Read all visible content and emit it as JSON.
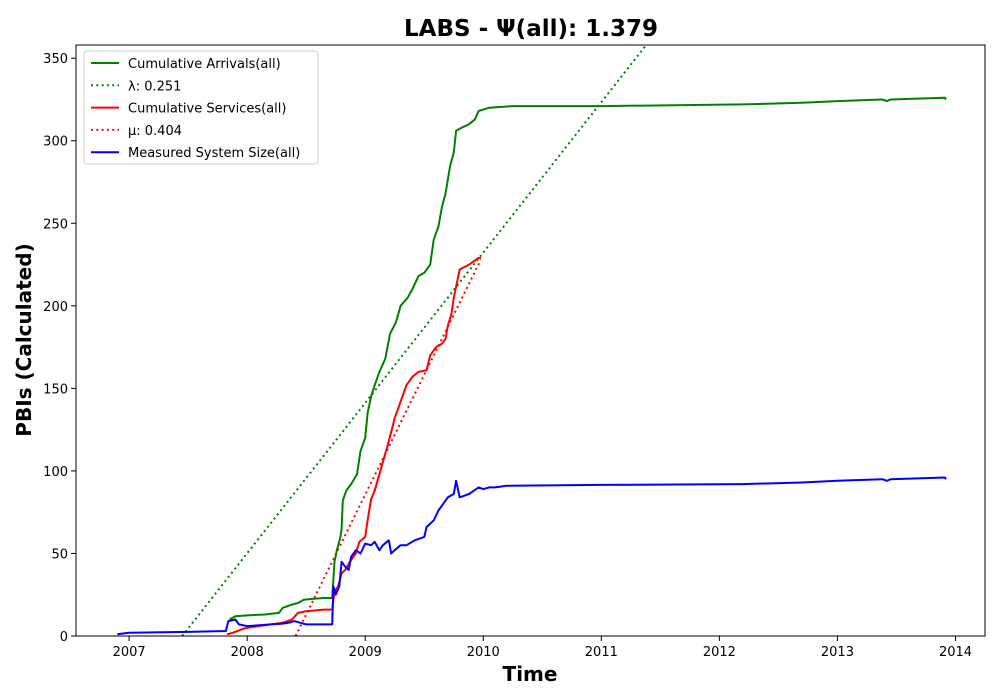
{
  "chart_data": {
    "type": "line",
    "title": "LABS -  Ψ(all): 1.379",
    "xlabel": "Time",
    "ylabel": "PBIs (Calculated)",
    "xlim": [
      2006.55,
      2014.25
    ],
    "ylim": [
      0,
      358
    ],
    "xticks": [
      2007,
      2008,
      2009,
      2010,
      2011,
      2012,
      2013,
      2014
    ],
    "yticks": [
      0,
      50,
      100,
      150,
      200,
      250,
      300,
      350
    ],
    "grid": false,
    "legend_position": "top-left",
    "series": [
      {
        "name": "Cumulative Arrivals(all)",
        "color": "#008000",
        "style": "solid",
        "points": [
          [
            2007.85,
            10
          ],
          [
            2007.9,
            12
          ],
          [
            2008.0,
            12.5
          ],
          [
            2008.15,
            13
          ],
          [
            2008.27,
            14
          ],
          [
            2008.3,
            17
          ],
          [
            2008.38,
            19
          ],
          [
            2008.43,
            20
          ],
          [
            2008.48,
            22
          ],
          [
            2008.55,
            22.5
          ],
          [
            2008.65,
            23
          ],
          [
            2008.72,
            23
          ],
          [
            2008.74,
            45
          ],
          [
            2008.76,
            52
          ],
          [
            2008.79,
            60
          ],
          [
            2008.8,
            65
          ],
          [
            2008.81,
            82
          ],
          [
            2008.84,
            88
          ],
          [
            2008.88,
            92
          ],
          [
            2008.93,
            98
          ],
          [
            2008.96,
            112
          ],
          [
            2009.0,
            120
          ],
          [
            2009.02,
            135
          ],
          [
            2009.05,
            145
          ],
          [
            2009.08,
            152
          ],
          [
            2009.12,
            160
          ],
          [
            2009.17,
            168
          ],
          [
            2009.21,
            183
          ],
          [
            2009.26,
            190
          ],
          [
            2009.3,
            200
          ],
          [
            2009.36,
            205
          ],
          [
            2009.4,
            210
          ],
          [
            2009.45,
            218
          ],
          [
            2009.5,
            220
          ],
          [
            2009.55,
            225
          ],
          [
            2009.58,
            240
          ],
          [
            2009.62,
            248
          ],
          [
            2009.65,
            260
          ],
          [
            2009.68,
            268
          ],
          [
            2009.72,
            285
          ],
          [
            2009.75,
            293
          ],
          [
            2009.77,
            306
          ],
          [
            2009.82,
            308
          ],
          [
            2009.88,
            310
          ],
          [
            2009.93,
            313
          ],
          [
            2009.96,
            318
          ],
          [
            2010.05,
            320
          ],
          [
            2010.25,
            321
          ],
          [
            2011.0,
            321
          ],
          [
            2012.2,
            322
          ],
          [
            2012.7,
            323
          ],
          [
            2013.0,
            324
          ],
          [
            2013.38,
            325
          ],
          [
            2013.42,
            324
          ],
          [
            2013.45,
            325
          ],
          [
            2013.91,
            326
          ],
          [
            2013.92,
            325
          ]
        ]
      },
      {
        "name": "λ: 0.251",
        "color": "#008000",
        "style": "dotted",
        "points": [
          [
            2007.45,
            0
          ],
          [
            2011.38,
            358
          ]
        ]
      },
      {
        "name": "Cumulative Services(all)",
        "color": "#ff0000",
        "style": "solid",
        "points": [
          [
            2007.83,
            1
          ],
          [
            2007.88,
            2
          ],
          [
            2007.92,
            3
          ],
          [
            2007.95,
            4
          ],
          [
            2008.0,
            5
          ],
          [
            2008.1,
            6
          ],
          [
            2008.2,
            7
          ],
          [
            2008.3,
            8
          ],
          [
            2008.38,
            10
          ],
          [
            2008.43,
            14
          ],
          [
            2008.5,
            15
          ],
          [
            2008.65,
            16
          ],
          [
            2008.72,
            16
          ],
          [
            2008.74,
            27
          ],
          [
            2008.77,
            30
          ],
          [
            2008.8,
            38
          ],
          [
            2008.83,
            40
          ],
          [
            2008.87,
            45
          ],
          [
            2008.92,
            50
          ],
          [
            2008.95,
            57
          ],
          [
            2009.0,
            60
          ],
          [
            2009.02,
            70
          ],
          [
            2009.05,
            83
          ],
          [
            2009.08,
            88
          ],
          [
            2009.12,
            98
          ],
          [
            2009.16,
            108
          ],
          [
            2009.2,
            118
          ],
          [
            2009.25,
            132
          ],
          [
            2009.3,
            142
          ],
          [
            2009.35,
            152
          ],
          [
            2009.4,
            157
          ],
          [
            2009.45,
            160
          ],
          [
            2009.52,
            161
          ],
          [
            2009.55,
            170
          ],
          [
            2009.6,
            175
          ],
          [
            2009.65,
            177
          ],
          [
            2009.68,
            180
          ],
          [
            2009.7,
            188
          ],
          [
            2009.73,
            195
          ],
          [
            2009.75,
            205
          ],
          [
            2009.78,
            215
          ],
          [
            2009.8,
            222
          ],
          [
            2009.88,
            225
          ],
          [
            2009.92,
            227
          ],
          [
            2009.96,
            229
          ],
          [
            2009.98,
            229
          ]
        ]
      },
      {
        "name": "μ: 0.404",
        "color": "#ff0000",
        "style": "dotted",
        "points": [
          [
            2008.41,
            0
          ],
          [
            2009.98,
            228
          ]
        ]
      },
      {
        "name": "Measured System Size(all)",
        "color": "#0000ff",
        "style": "solid",
        "points": [
          [
            2006.9,
            1
          ],
          [
            2007.0,
            2
          ],
          [
            2007.5,
            2.5
          ],
          [
            2007.82,
            3
          ],
          [
            2007.84,
            9
          ],
          [
            2007.9,
            10
          ],
          [
            2007.93,
            7
          ],
          [
            2008.0,
            6
          ],
          [
            2008.1,
            6.5
          ],
          [
            2008.2,
            7
          ],
          [
            2008.3,
            7.5
          ],
          [
            2008.35,
            8
          ],
          [
            2008.4,
            9
          ],
          [
            2008.45,
            8
          ],
          [
            2008.5,
            7
          ],
          [
            2008.72,
            7
          ],
          [
            2008.73,
            30
          ],
          [
            2008.75,
            25
          ],
          [
            2008.78,
            30
          ],
          [
            2008.8,
            45
          ],
          [
            2008.83,
            42
          ],
          [
            2008.86,
            40
          ],
          [
            2008.88,
            48
          ],
          [
            2008.92,
            52
          ],
          [
            2008.96,
            50
          ],
          [
            2009.0,
            56
          ],
          [
            2009.05,
            55
          ],
          [
            2009.08,
            57
          ],
          [
            2009.12,
            52
          ],
          [
            2009.15,
            55
          ],
          [
            2009.2,
            58
          ],
          [
            2009.22,
            50
          ],
          [
            2009.25,
            52
          ],
          [
            2009.3,
            55
          ],
          [
            2009.35,
            55
          ],
          [
            2009.42,
            58
          ],
          [
            2009.5,
            60
          ],
          [
            2009.52,
            66
          ],
          [
            2009.58,
            70
          ],
          [
            2009.62,
            76
          ],
          [
            2009.66,
            80
          ],
          [
            2009.7,
            84
          ],
          [
            2009.75,
            86
          ],
          [
            2009.77,
            94
          ],
          [
            2009.8,
            84
          ],
          [
            2009.84,
            85
          ],
          [
            2009.88,
            86
          ],
          [
            2009.92,
            88
          ],
          [
            2009.96,
            90
          ],
          [
            2010.0,
            89
          ],
          [
            2010.05,
            90
          ],
          [
            2010.1,
            90
          ],
          [
            2010.2,
            91
          ],
          [
            2011.0,
            91.5
          ],
          [
            2012.2,
            92
          ],
          [
            2012.7,
            93
          ],
          [
            2013.0,
            94
          ],
          [
            2013.38,
            95
          ],
          [
            2013.42,
            94
          ],
          [
            2013.45,
            95
          ],
          [
            2013.91,
            96
          ],
          [
            2013.92,
            95
          ]
        ]
      }
    ]
  }
}
